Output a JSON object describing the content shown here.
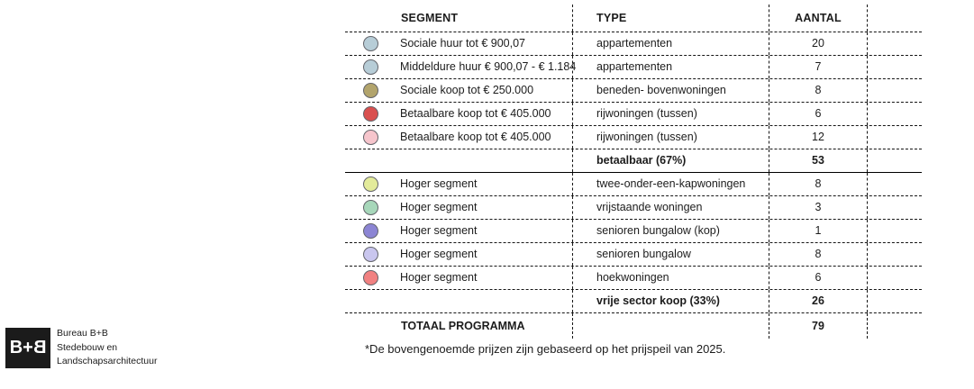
{
  "table": {
    "columns": [
      "SEGMENT",
      "TYPE",
      "AANTAL"
    ],
    "rows": [
      {
        "dot": "#b7cdd7",
        "segment": "Sociale huur tot € 900,07",
        "type": "appartementen",
        "aantal": "20",
        "bold": false,
        "solid_bottom": false,
        "last": false
      },
      {
        "dot": "#b7cdd7",
        "segment": "Middeldure huur € 900,07 - € 1.184",
        "type": "appartementen",
        "aantal": "7",
        "bold": false,
        "solid_bottom": false,
        "last": false
      },
      {
        "dot": "#b2a46c",
        "segment": "Sociale koop tot € 250.000",
        "type": "beneden- bovenwoningen",
        "aantal": "8",
        "bold": false,
        "solid_bottom": false,
        "last": false
      },
      {
        "dot": "#d9504f",
        "segment": "Betaalbare koop tot € 405.000",
        "type": "rijwoningen (tussen)",
        "aantal": "6",
        "bold": false,
        "solid_bottom": false,
        "last": false
      },
      {
        "dot": "#f6c5cc",
        "segment": "Betaalbare koop tot € 405.000",
        "type": "rijwoningen (tussen)",
        "aantal": "12",
        "bold": false,
        "solid_bottom": false,
        "last": false
      },
      {
        "dot": null,
        "segment": "",
        "type": "betaalbaar (67%)",
        "aantal": "53",
        "bold": true,
        "solid_bottom": true,
        "last": false
      },
      {
        "dot": "#e3eb9b",
        "segment": "Hoger segment",
        "type": "twee-onder-een-kapwoningen",
        "aantal": "8",
        "bold": false,
        "solid_bottom": false,
        "last": false
      },
      {
        "dot": "#a7d7ba",
        "segment": "Hoger segment",
        "type": "vrijstaande woningen",
        "aantal": "3",
        "bold": false,
        "solid_bottom": false,
        "last": false
      },
      {
        "dot": "#8c85d4",
        "segment": "Hoger segment",
        "type": "senioren bungalow (kop)",
        "aantal": "1",
        "bold": false,
        "solid_bottom": false,
        "last": false
      },
      {
        "dot": "#c9c6ee",
        "segment": "Hoger segment",
        "type": "senioren bungalow",
        "aantal": "8",
        "bold": false,
        "solid_bottom": false,
        "last": false
      },
      {
        "dot": "#f18181",
        "segment": "Hoger segment",
        "type": "hoekwoningen",
        "aantal": "6",
        "bold": false,
        "solid_bottom": false,
        "last": false
      },
      {
        "dot": null,
        "segment": "",
        "type": "vrije sector koop (33%)",
        "aantal": "26",
        "bold": true,
        "solid_bottom": false,
        "last": false
      },
      {
        "dot": null,
        "segment": "TOTAAL PROGRAMMA",
        "type": "",
        "aantal": "79",
        "bold": true,
        "solid_bottom": false,
        "last": true
      }
    ]
  },
  "footnote": "*De bovengenoemde prijzen zijn gebaseerd op het prijspeil van 2025.",
  "logo": {
    "mark_b1": "B",
    "mark_plus": "+",
    "mark_b2": "B",
    "line1": "Bureau B+B",
    "line2": "Stedebouw en",
    "line3": "Landschapsarchitectuur"
  },
  "colors": {
    "line": "#151515",
    "text": "#1c1c1c",
    "dot_border": "#63646a",
    "logo_background": "#1b1b1b"
  }
}
